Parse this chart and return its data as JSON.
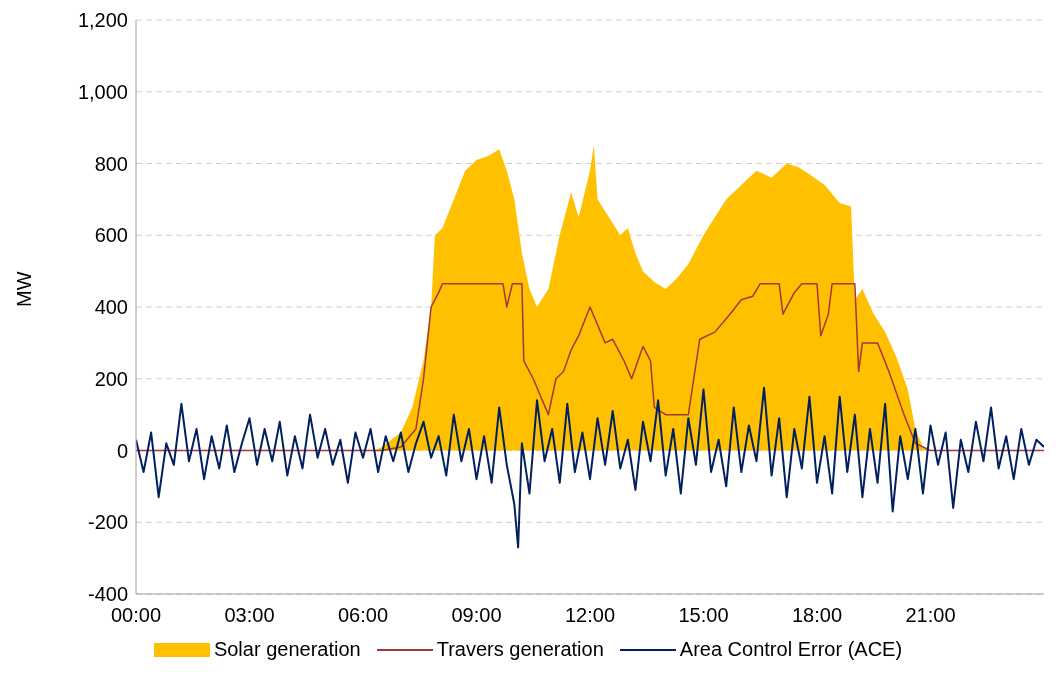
{
  "chart_data": {
    "type": "area",
    "ylabel": "MW",
    "xlim": [
      0,
      24
    ],
    "ylim": [
      -400,
      1200
    ],
    "xticks": [
      {
        "value": 0,
        "label": "00:00"
      },
      {
        "value": 3,
        "label": "03:00"
      },
      {
        "value": 6,
        "label": "06:00"
      },
      {
        "value": 9,
        "label": "09:00"
      },
      {
        "value": 12,
        "label": "12:00"
      },
      {
        "value": 15,
        "label": "15:00"
      },
      {
        "value": 18,
        "label": "18:00"
      },
      {
        "value": 21,
        "label": "21:00"
      }
    ],
    "yticks": [
      -400,
      -200,
      0,
      200,
      400,
      600,
      800,
      {
        "value": 1000,
        "label": "1,000"
      },
      {
        "value": 1200,
        "label": "1,200"
      }
    ],
    "grid": "y",
    "legend": "bottom",
    "series": [
      {
        "name": "Solar generation",
        "color": "#ffc000",
        "x": [
          0,
          6.3,
          6.5,
          7,
          7.3,
          7.6,
          7.8,
          7.9,
          8.1,
          8.4,
          8.7,
          9,
          9.3,
          9.6,
          9.8,
          10,
          10.2,
          10.4,
          10.6,
          10.9,
          11.2,
          11.5,
          11.7,
          12,
          12.1,
          12.2,
          12.5,
          12.8,
          13,
          13.2,
          13.4,
          13.7,
          14,
          14.3,
          14.6,
          15,
          15.3,
          15.6,
          16,
          16.4,
          16.8,
          17.2,
          17.5,
          17.8,
          18.2,
          18.6,
          18.9,
          19,
          19.2,
          19.5,
          19.8,
          20.1,
          20.4,
          20.6,
          20.8,
          21,
          24
        ],
        "values": [
          0,
          0,
          10,
          50,
          120,
          250,
          400,
          600,
          620,
          700,
          780,
          810,
          820,
          840,
          780,
          700,
          550,
          450,
          400,
          450,
          600,
          720,
          650,
          780,
          850,
          700,
          650,
          600,
          620,
          550,
          500,
          470,
          450,
          480,
          520,
          600,
          650,
          700,
          740,
          780,
          760,
          800,
          790,
          770,
          740,
          690,
          680,
          420,
          450,
          380,
          330,
          260,
          170,
          60,
          10,
          0,
          0
        ]
      },
      {
        "name": "Travers generation",
        "type": "line",
        "color": "#a5373a",
        "x": [
          0,
          6.5,
          7,
          7.4,
          7.6,
          7.8,
          8,
          8.1,
          9.7,
          9.8,
          9.95,
          10.2,
          10.25,
          10.5,
          10.7,
          10.9,
          11.1,
          11.3,
          11.5,
          11.7,
          12,
          12.4,
          12.6,
          12.9,
          13.1,
          13.4,
          13.6,
          13.7,
          14,
          14.6,
          14.7,
          14.9,
          15.3,
          15.7,
          16,
          16.3,
          16.5,
          17,
          17.1,
          17.4,
          17.6,
          18,
          18.1,
          18.3,
          18.4,
          19,
          19.1,
          19.2,
          19.6,
          19.9,
          20.3,
          20.6,
          21,
          24
        ],
        "values": [
          0,
          0,
          10,
          60,
          200,
          400,
          440,
          465,
          465,
          400,
          465,
          465,
          250,
          200,
          150,
          100,
          200,
          220,
          280,
          320,
          400,
          300,
          310,
          250,
          200,
          290,
          250,
          120,
          100,
          100,
          170,
          310,
          330,
          380,
          420,
          430,
          465,
          465,
          380,
          440,
          465,
          465,
          320,
          380,
          465,
          465,
          220,
          300,
          300,
          220,
          100,
          20,
          0,
          0
        ]
      },
      {
        "name": "Area Control Error (ACE)",
        "type": "line",
        "color": "#002060",
        "x": [
          0,
          0.2,
          0.4,
          0.6,
          0.8,
          1,
          1.2,
          1.4,
          1.6,
          1.8,
          2,
          2.2,
          2.4,
          2.6,
          2.8,
          3,
          3.2,
          3.4,
          3.6,
          3.8,
          4,
          4.2,
          4.4,
          4.6,
          4.8,
          5,
          5.2,
          5.4,
          5.6,
          5.8,
          6,
          6.2,
          6.4,
          6.6,
          6.8,
          7,
          7.2,
          7.4,
          7.6,
          7.8,
          8,
          8.2,
          8.4,
          8.6,
          8.8,
          9,
          9.2,
          9.4,
          9.6,
          9.8,
          10,
          10.1,
          10.2,
          10.4,
          10.6,
          10.8,
          11,
          11.2,
          11.4,
          11.6,
          11.8,
          12,
          12.2,
          12.4,
          12.6,
          12.8,
          13,
          13.2,
          13.4,
          13.6,
          13.8,
          14,
          14.2,
          14.4,
          14.6,
          14.8,
          15,
          15.2,
          15.4,
          15.6,
          15.8,
          16,
          16.2,
          16.4,
          16.6,
          16.8,
          17,
          17.2,
          17.4,
          17.6,
          17.8,
          18,
          18.2,
          18.4,
          18.6,
          18.8,
          19,
          19.2,
          19.4,
          19.6,
          19.8,
          20,
          20.2,
          20.4,
          20.6,
          20.8,
          21,
          21.2,
          21.4,
          21.6,
          21.8,
          22,
          22.2,
          22.4,
          22.6,
          22.8,
          23,
          23.2,
          23.4,
          23.6,
          23.8,
          24
        ],
        "values": [
          30,
          -60,
          50,
          -130,
          20,
          -40,
          130,
          -30,
          60,
          -80,
          40,
          -50,
          70,
          -60,
          20,
          90,
          -40,
          60,
          -30,
          80,
          -70,
          40,
          -50,
          100,
          -20,
          60,
          -40,
          30,
          -90,
          50,
          -20,
          60,
          -60,
          40,
          -30,
          50,
          -60,
          20,
          80,
          -20,
          40,
          -70,
          100,
          -30,
          60,
          -80,
          40,
          -90,
          120,
          -40,
          -150,
          -270,
          20,
          -120,
          140,
          -30,
          60,
          -90,
          130,
          -60,
          50,
          -80,
          90,
          -40,
          110,
          -50,
          30,
          -110,
          80,
          -30,
          140,
          -70,
          60,
          -120,
          90,
          -40,
          170,
          -60,
          30,
          -100,
          120,
          -60,
          70,
          -30,
          175,
          -70,
          90,
          -130,
          60,
          -50,
          150,
          -90,
          40,
          -120,
          150,
          -60,
          100,
          -130,
          60,
          -90,
          130,
          -170,
          40,
          -80,
          60,
          -120,
          70,
          -40,
          50,
          -160,
          30,
          -60,
          80,
          -30,
          120,
          -50,
          40,
          -80,
          60,
          -40,
          30,
          10
        ]
      }
    ]
  }
}
